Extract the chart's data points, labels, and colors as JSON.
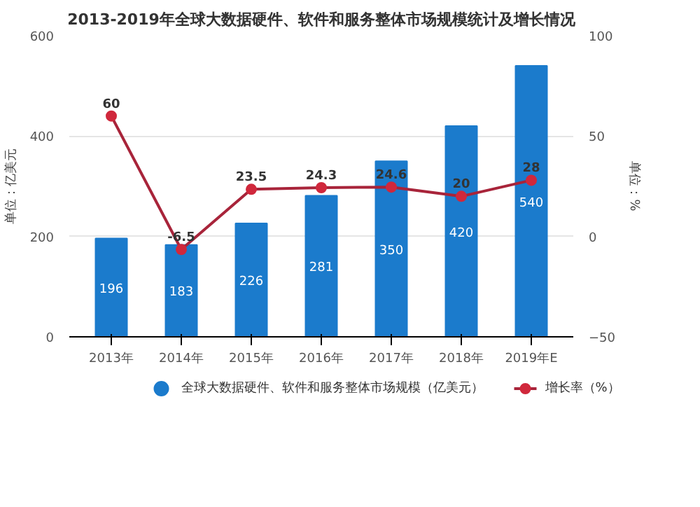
{
  "chart_data": {
    "type": "bar",
    "title": "2013-2019年全球大数据硬件、软件和服务整体市场规模统计及增长情况",
    "categories": [
      "2013年",
      "2014年",
      "2015年",
      "2016年",
      "2017年",
      "2018年",
      "2019年E"
    ],
    "series": [
      {
        "name": "全球大数据硬件、软件和服务整体市场规模（亿美元）",
        "color": "#1b7bcc",
        "values": [
          196,
          183,
          226,
          281,
          350,
          420,
          540
        ]
      },
      {
        "name": "增长率（%）",
        "type": "line",
        "axis": "y2",
        "color": "#a8243a",
        "marker": "circle",
        "values": [
          60,
          -6.5,
          23.5,
          24.3,
          24.6,
          20,
          28
        ]
      }
    ],
    "data_labels": true,
    "ylabel": "单位：亿美元",
    "y2label": "单位：%",
    "ylim": [
      0,
      600
    ],
    "yticks": [
      0,
      200,
      400,
      600
    ],
    "y2lim": [
      -50,
      100
    ],
    "y2ticks": [
      -50,
      0,
      50,
      100
    ],
    "grid": "y",
    "legend": "bottom"
  }
}
